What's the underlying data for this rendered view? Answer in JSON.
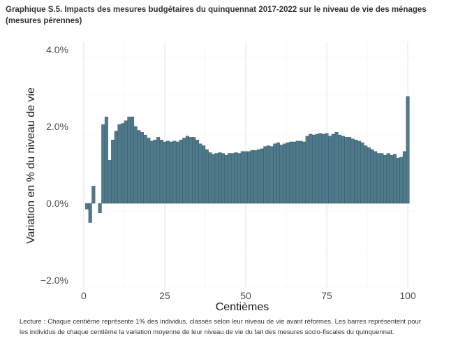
{
  "title": "Graphique S.5. Impacts des mesures budgétaires du quinquennat 2017-2022 sur le niveau de vie des ménages (mesures pérennes)",
  "note": "Lecture : Chaque centième représente 1% des individus, classés selon leur niveau de vie avant réformes. Les barres représentent pour les individus de chaque centième la variation moyenne de leur niveau de vie du fait des mesures socio-fiscales du quinquennat.",
  "chart_data": {
    "type": "bar",
    "xlabel": "Centièmes",
    "ylabel": "Variation en % du niveau de vie",
    "xlim": [
      -3,
      103
    ],
    "ylim": [
      -2.2,
      4.2
    ],
    "x_ticks": [
      0,
      25,
      50,
      75,
      100
    ],
    "y_ticks": [
      -2.0,
      0.0,
      2.0,
      4.0
    ],
    "y_tick_labels": [
      "−2.0%",
      "0.0%",
      "2.0%",
      "4.0%"
    ],
    "grid": true,
    "bar_color": "#4f7a8c",
    "x": [
      1,
      2,
      3,
      4,
      5,
      6,
      7,
      8,
      9,
      10,
      11,
      12,
      13,
      14,
      15,
      16,
      17,
      18,
      19,
      20,
      21,
      22,
      23,
      24,
      25,
      26,
      27,
      28,
      29,
      30,
      31,
      32,
      33,
      34,
      35,
      36,
      37,
      38,
      39,
      40,
      41,
      42,
      43,
      44,
      45,
      46,
      47,
      48,
      49,
      50,
      51,
      52,
      53,
      54,
      55,
      56,
      57,
      58,
      59,
      60,
      61,
      62,
      63,
      64,
      65,
      66,
      67,
      68,
      69,
      70,
      71,
      72,
      73,
      74,
      75,
      76,
      77,
      78,
      79,
      80,
      81,
      82,
      83,
      84,
      85,
      86,
      87,
      88,
      89,
      90,
      91,
      92,
      93,
      94,
      95,
      96,
      97,
      98,
      99,
      100
    ],
    "values": [
      -0.15,
      -0.5,
      0.45,
      0.0,
      -0.25,
      2.05,
      2.25,
      1.12,
      1.65,
      1.88,
      2.05,
      2.08,
      2.15,
      2.25,
      2.25,
      2.0,
      1.9,
      1.85,
      1.78,
      1.7,
      1.62,
      1.65,
      1.72,
      1.65,
      1.6,
      1.62,
      1.6,
      1.62,
      1.6,
      1.65,
      1.7,
      1.75,
      1.72,
      1.72,
      1.65,
      1.55,
      1.5,
      1.4,
      1.32,
      1.28,
      1.3,
      1.32,
      1.3,
      1.25,
      1.3,
      1.3,
      1.32,
      1.3,
      1.35,
      1.35,
      1.35,
      1.38,
      1.38,
      1.4,
      1.42,
      1.48,
      1.5,
      1.48,
      1.55,
      1.58,
      1.52,
      1.55,
      1.58,
      1.6,
      1.6,
      1.62,
      1.62,
      1.6,
      1.75,
      1.8,
      1.78,
      1.8,
      1.82,
      1.8,
      1.82,
      1.75,
      1.8,
      1.85,
      1.78,
      1.75,
      1.72,
      1.72,
      1.68,
      1.65,
      1.62,
      1.58,
      1.5,
      1.45,
      1.4,
      1.35,
      1.3,
      1.3,
      1.25,
      1.3,
      1.25,
      1.28,
      1.18,
      1.2,
      1.35,
      2.78
    ]
  }
}
